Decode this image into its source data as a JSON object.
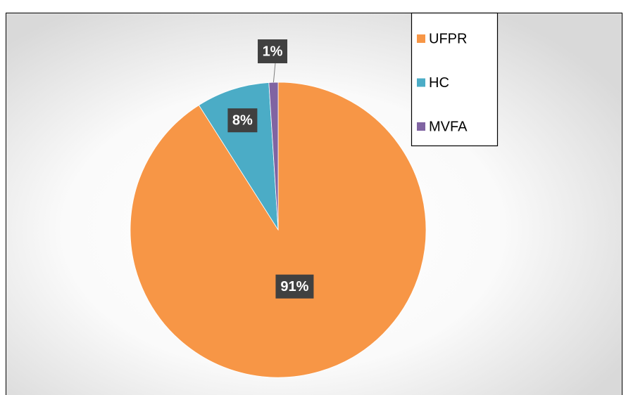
{
  "chart_data": {
    "type": "pie",
    "categories": [
      "UFPR",
      "HC",
      "MVFA"
    ],
    "values": [
      91,
      8,
      1
    ],
    "value_labels": [
      "91%",
      "8%",
      "1%"
    ],
    "colors": [
      "#f79646",
      "#4bacc6",
      "#8064a2"
    ],
    "legend": "top-right"
  }
}
